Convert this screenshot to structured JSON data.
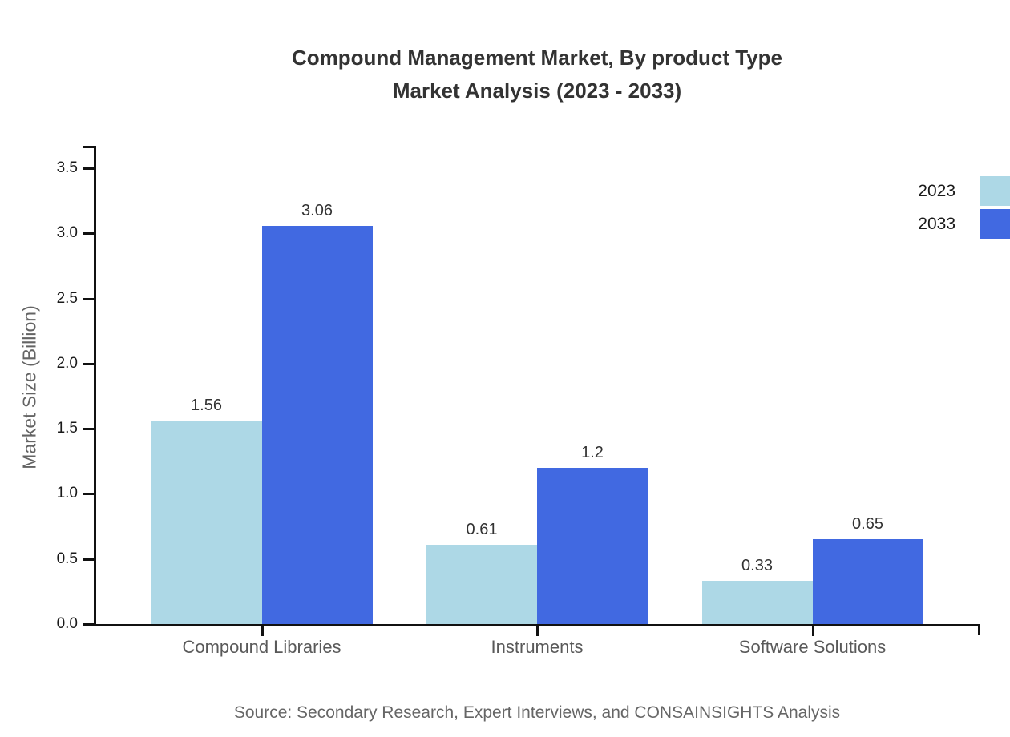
{
  "title": {
    "line1": "Compound Management Market, By product Type",
    "line2": "Market Analysis (2023 - 2033)"
  },
  "source": "Source: Secondary Research, Expert Interviews, and CONSAINSIGHTS Analysis",
  "chart_data": {
    "type": "bar",
    "title": "Compound Management Market, By product Type Market Analysis (2023 - 2033)",
    "categories": [
      "Compound Libraries",
      "Instruments",
      "Software Solutions"
    ],
    "series": [
      {
        "name": "2023",
        "color": "#ADD8E6",
        "values": [
          1.56,
          0.61,
          0.33
        ]
      },
      {
        "name": "2033",
        "color": "#4169E1",
        "values": [
          3.06,
          1.2,
          0.65
        ]
      }
    ],
    "xlabel": "",
    "ylabel": "Market Size (Billion)",
    "yticks": [
      0.0,
      0.5,
      1.0,
      1.5,
      2.0,
      2.5,
      3.0,
      3.5
    ],
    "ylim": [
      0,
      3.5
    ],
    "grid": false,
    "legend_position": "upper-right-outside",
    "axis_color": "#111111",
    "value_label_color": "#333333"
  }
}
